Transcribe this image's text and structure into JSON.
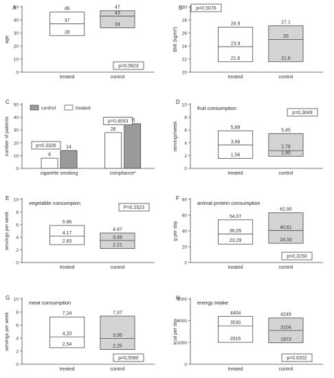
{
  "colors": {
    "treated": "#ffffff",
    "control": "#d4d4d4",
    "control_bar": "#9a9a9a",
    "axis": "#444444"
  },
  "chart_data": [
    {
      "panel": "A",
      "type": "boxplot",
      "title": "",
      "xlabel": "",
      "ylabel": "age",
      "ylim": [
        0,
        50
      ],
      "yticks": [
        0,
        10,
        20,
        30,
        40,
        50
      ],
      "categories": [
        "treated",
        "control"
      ],
      "boxes": [
        {
          "group": "treated",
          "low": 28,
          "median": 37,
          "high": 46,
          "low_label": "28",
          "median_label": "37",
          "high_label": "46"
        },
        {
          "group": "control",
          "low": 34,
          "median": 43,
          "high": 47,
          "low_label": "34",
          "median_label": "43",
          "high_label": "47"
        }
      ],
      "pvalue": "p=0.0823",
      "pbox": "bottom-right"
    },
    {
      "panel": "B",
      "type": "boxplot",
      "title": "",
      "xlabel": "",
      "ylabel": "BMI (kg/m²)",
      "ylim": [
        20,
        30
      ],
      "yticks": [
        20,
        22,
        24,
        26,
        28,
        30
      ],
      "ytick_labels": [
        "20",
        "22",
        "24",
        "26",
        "28",
        "30"
      ],
      "categories": [
        "treated",
        "control"
      ],
      "boxes": [
        {
          "group": "treated",
          "low": 21.6,
          "median": 23.9,
          "high": 26.9,
          "low_label": "21.6",
          "median_label": "23.9",
          "high_label": "26.9"
        },
        {
          "group": "control",
          "low": 21.6,
          "median": 25,
          "high": 27.1,
          "low_label": "21.6",
          "median_label": "25",
          "high_label": "27.1"
        }
      ],
      "pvalue": "p=0.5076",
      "pbox": "top-left"
    },
    {
      "panel": "C",
      "type": "bar",
      "title": "",
      "xlabel": "",
      "ylabel": "number of patients",
      "ylim": [
        0,
        50
      ],
      "yticks": [
        0,
        10,
        20,
        30,
        40,
        50
      ],
      "categories": [
        "cigarette smoking",
        "compliance*"
      ],
      "series": [
        {
          "name": "treated",
          "values": [
            8,
            28
          ],
          "labels": [
            "8",
            "28"
          ]
        },
        {
          "name": "control",
          "values": [
            14,
            35
          ],
          "labels": [
            "14",
            "35"
          ]
        }
      ],
      "legend": [
        "control",
        "treated"
      ],
      "legend_placement": "top-left",
      "pvalues": [
        "p=0.3326",
        "p=0.4053"
      ]
    },
    {
      "panel": "D",
      "type": "boxplot",
      "title": "fruit consumption",
      "xlabel": "",
      "ylabel": "servings/week",
      "ylim": [
        0,
        10
      ],
      "yticks": [
        0,
        2,
        4,
        6,
        8,
        10
      ],
      "categories": [
        "treated",
        "control"
      ],
      "boxes": [
        {
          "group": "treated",
          "low": 1.56,
          "median": 3.66,
          "high": 5.88,
          "low_label": "1,56",
          "median_label": "3,66",
          "high_label": "5,88"
        },
        {
          "group": "control",
          "low": 1.9,
          "median": 2.78,
          "high": 5.45,
          "low_label": "1,90",
          "median_label": "2,78",
          "high_label": "5,45"
        }
      ],
      "pvalue": "p=0,3649",
      "pbox": "top-right"
    },
    {
      "panel": "E",
      "type": "boxplot",
      "title": "vegetable consumpion",
      "xlabel": "",
      "ylabel": "servings per week",
      "ylim": [
        0,
        10
      ],
      "yticks": [
        0,
        2,
        4,
        6,
        8,
        10
      ],
      "categories": [
        "treated",
        "control"
      ],
      "boxes": [
        {
          "group": "treated",
          "low": 2.83,
          "median": 4.17,
          "high": 5.86,
          "low_label": "2.83",
          "median_label": "4.17",
          "high_label": "5.86"
        },
        {
          "group": "control",
          "low": 2.21,
          "median": 3.49,
          "high": 4.67,
          "low_label": "2.21",
          "median_label": "3.49",
          "high_label": "4.67"
        }
      ],
      "pvalue": "P=0.2523",
      "pbox": "top-right"
    },
    {
      "panel": "F",
      "type": "boxplot",
      "title": "animal protein consumption",
      "xlabel": "",
      "ylabel": "g per day",
      "ylim": [
        0,
        80
      ],
      "yticks": [
        0,
        20,
        40,
        60,
        80
      ],
      "categories": [
        "treated",
        "control"
      ],
      "boxes": [
        {
          "group": "treated",
          "low": 23.29,
          "median": 36.05,
          "high": 54.07,
          "low_label": "23,29",
          "median_label": "36,05",
          "high_label": "54,07"
        },
        {
          "group": "control",
          "low": 24.33,
          "median": 40.61,
          "high": 62.9,
          "low_label": "24,33",
          "median_label": "40,61",
          "high_label": "62,90"
        }
      ],
      "pvalue": "p=0,3150",
      "pbox": "bottom-right"
    },
    {
      "panel": "G",
      "type": "boxplot",
      "title": "meat consumption",
      "xlabel": "",
      "ylabel": "servings per week",
      "ylim": [
        0,
        10
      ],
      "yticks": [
        0,
        2,
        4,
        6,
        8,
        10
      ],
      "categories": [
        "treated",
        "control"
      ],
      "boxes": [
        {
          "group": "treated",
          "low": 2.54,
          "median": 4.2,
          "high": 7.24,
          "low_label": "2,54",
          "median_label": "4,20",
          "high_label": "7,24"
        },
        {
          "group": "control",
          "low": 2.25,
          "median": 3.95,
          "high": 7.37,
          "low_label": "2,25",
          "median_label": "3,95",
          "high_label": "7,37"
        }
      ],
      "pvalue": "p=0,5580",
      "pbox": "bottom-right"
    },
    {
      "panel": "H",
      "type": "boxplot",
      "title": "energy intake",
      "xlabel": "",
      "ylabel": "kcal per day",
      "ylim": [
        0,
        6000
      ],
      "yticks": [
        0,
        2000,
        4000,
        6000
      ],
      "categories": [
        "treated",
        "control"
      ],
      "boxes": [
        {
          "group": "treated",
          "low": 2015,
          "median": 3530,
          "high": 4404,
          "low_label": "2015",
          "median_label": "3530",
          "high_label": "4404"
        },
        {
          "group": "control",
          "low": 1973,
          "median": 3104,
          "high": 4249,
          "low_label": "1973",
          "median_label": "3104",
          "high_label": "4249"
        }
      ],
      "pvalue": "p=0.6202",
      "pbox": "bottom-right"
    }
  ]
}
